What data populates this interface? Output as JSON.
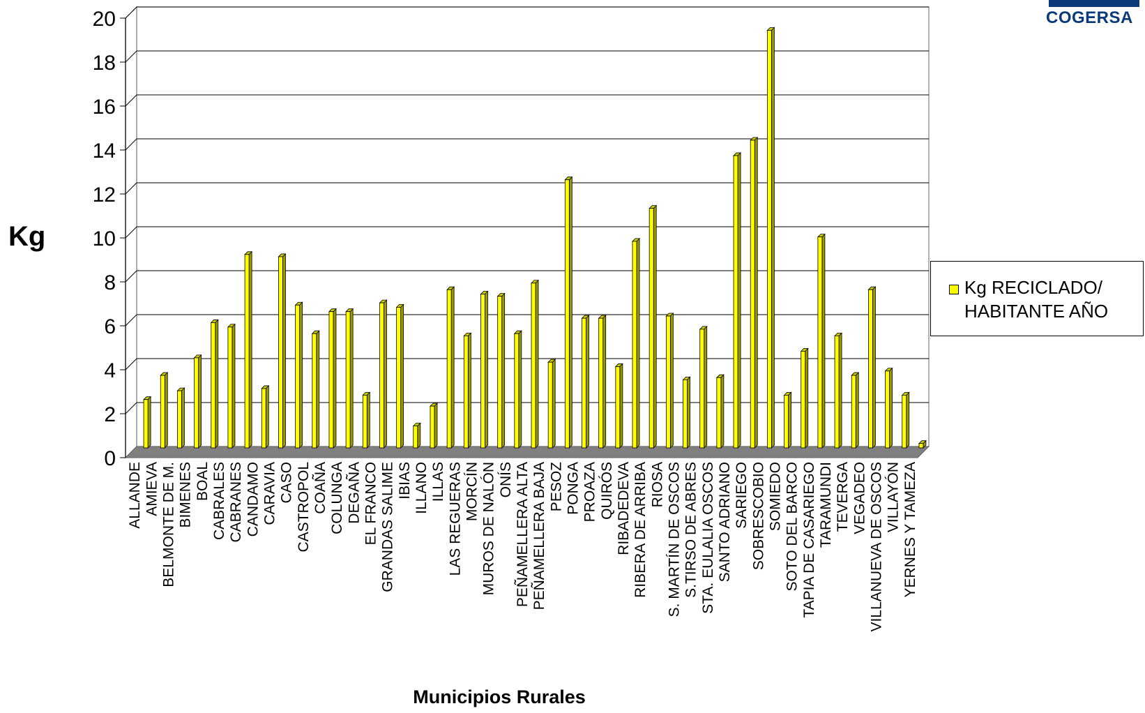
{
  "logo": {
    "text": "COGERSA",
    "color": "#0a3a7a"
  },
  "chart_data": {
    "type": "bar",
    "title": "",
    "ylabel": "Kg",
    "xlabel": "Municipios Rurales",
    "ylim": [
      0,
      20
    ],
    "yticks": [
      "0",
      "2",
      "4",
      "6",
      "8",
      "10",
      "12",
      "14",
      "16",
      "18",
      "20"
    ],
    "grid": true,
    "legend_position": "right",
    "bar_color": "#ffff00",
    "floor_color": "#808080",
    "categories": [
      "ALLANDE",
      "AMIEVA",
      "BELMONTE DE M.",
      "BIMENES",
      "BOAL",
      "CABRALES",
      "CABRANES",
      "CANDAMO",
      "CARAVIA",
      "CASO",
      "CASTROPOL",
      "COAÑA",
      "COLUNGA",
      "DEGAÑA",
      "EL FRANCO",
      "GRANDAS SALIME",
      "IBIAS",
      "ILLANO",
      "ILLAS",
      "LAS REGUERAS",
      "MORCÍN",
      "MUROS DE NALÓN",
      "ONÍS",
      "PEÑAMELLERA ALTA",
      "PEÑAMELLERA BAJA",
      "PESOZ",
      "PONGA",
      "PROAZA",
      "QUIRÓS",
      "RIBADEDEVA",
      "RIBERA DE ARRIBA",
      "RIOSA",
      "S. MARTÍN DE OSCOS",
      "S.TIRSO DE ABRES",
      "STA. EULALIA OSCOS",
      "SANTO ADRIANO",
      "SARIEGO",
      "SOBRESCOBIO",
      "SOMIEDO",
      "SOTO DEL BARCO",
      "TAPIA DE CASARIEGO",
      "TARAMUNDI",
      "TEVERGA",
      "VEGADEO",
      "VILLANUEVA DE OSCOS",
      "VILLAYÓN",
      "YERNES Y TAMEZA"
    ],
    "series": [
      {
        "name": "Kg RECICLADO/ HABITANTE AÑO",
        "values": [
          2.2,
          3.3,
          2.6,
          4.1,
          5.7,
          5.5,
          8.8,
          2.7,
          8.7,
          6.5,
          5.2,
          6.2,
          6.2,
          2.4,
          6.6,
          6.4,
          1.0,
          1.9,
          7.2,
          5.1,
          7.0,
          6.9,
          5.2,
          7.5,
          3.9,
          12.2,
          5.9,
          5.9,
          3.7,
          9.4,
          10.9,
          6.0,
          3.1,
          5.4,
          3.2,
          13.3,
          14.0,
          19.0,
          2.4,
          4.4,
          9.6,
          5.1,
          3.3,
          7.2,
          3.5,
          2.4,
          0.2
        ]
      }
    ]
  },
  "legend": {
    "line1": "Kg RECICLADO/",
    "line2": "HABITANTE AÑO"
  }
}
